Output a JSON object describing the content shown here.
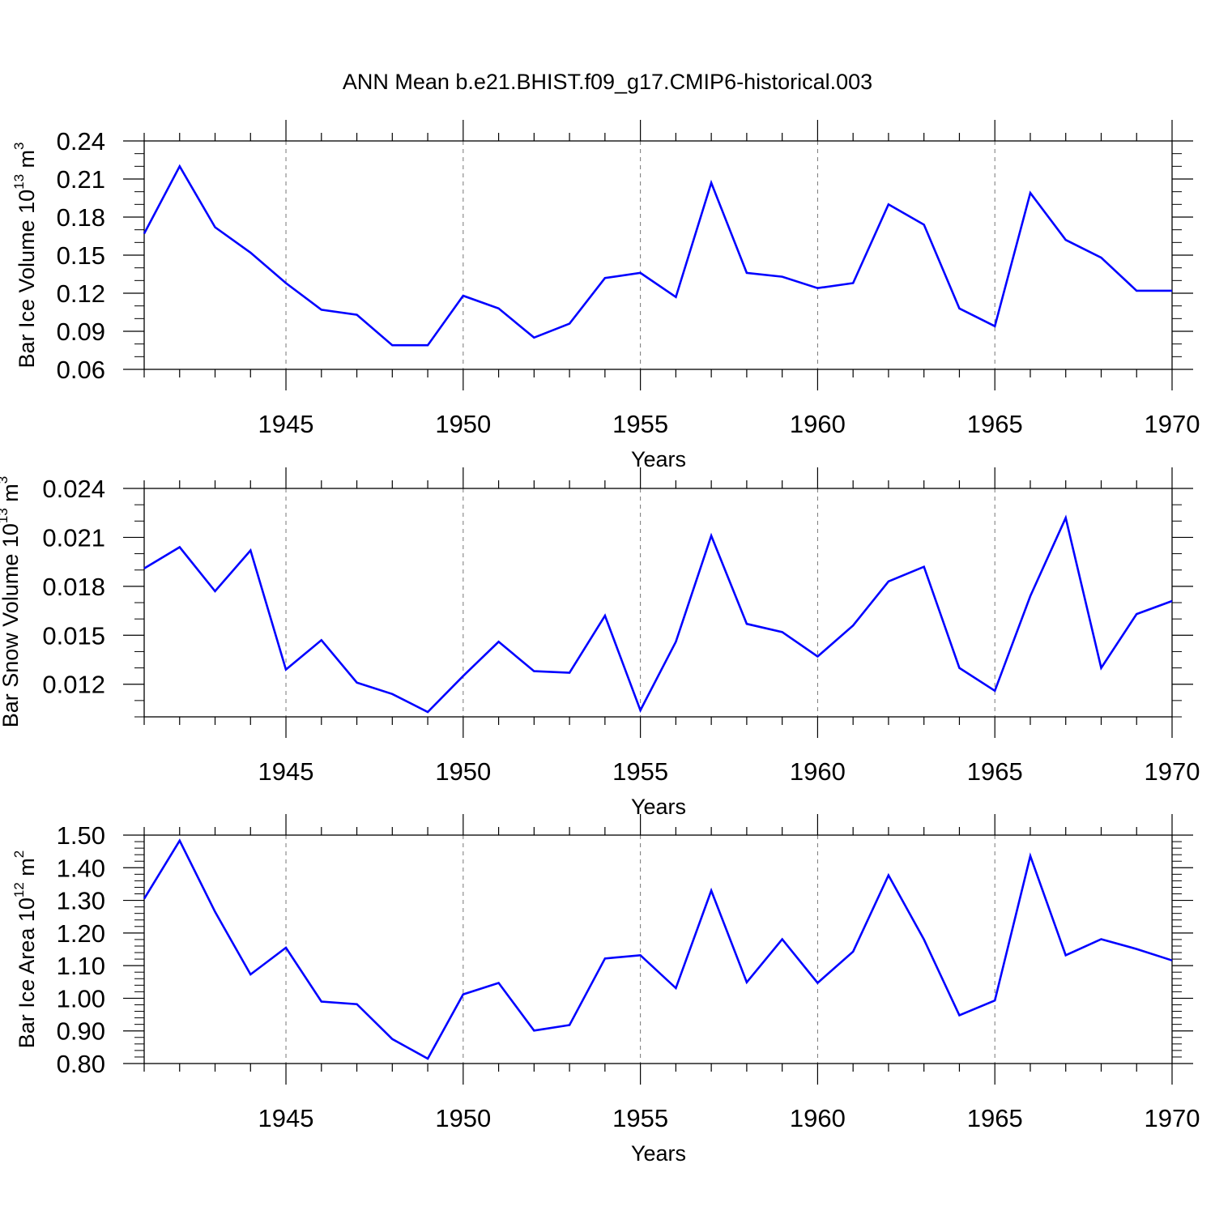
{
  "figure": {
    "title": "ANN Mean b.e21.BHIST.f09_g17.CMIP6-historical.003",
    "line_color": "#0000ff",
    "axis_color": "#000000",
    "grid_color": "#777777"
  },
  "chart_data": [
    {
      "type": "line",
      "ylabel": "Bar Ice Volume 10",
      "ylabel_exp": "13",
      "ylabel_unit": " m",
      "ylabel_unit_exp": "3",
      "xlabel": "Years",
      "xlim": [
        1941,
        1970
      ],
      "ylim": [
        0.06,
        0.24
      ],
      "yticks": [
        0.06,
        0.09,
        0.12,
        0.15,
        0.18,
        0.21,
        0.24
      ],
      "ytick_labels": [
        "0.06",
        "0.09",
        "0.12",
        "0.15",
        "0.18",
        "0.21",
        "0.24"
      ],
      "ytick_minor_step": 0.01,
      "xticks": [
        1945,
        1950,
        1955,
        1960,
        1965,
        1970
      ],
      "xtick_labels": [
        "1945",
        "1950",
        "1955",
        "1960",
        "1965",
        "1970"
      ],
      "x_gridlines": [
        1945,
        1950,
        1955,
        1960,
        1965
      ],
      "series": [
        {
          "name": "Bar Ice Volume",
          "x": [
            1941,
            1942,
            1943,
            1944,
            1945,
            1946,
            1947,
            1948,
            1949,
            1950,
            1951,
            1952,
            1953,
            1954,
            1955,
            1956,
            1957,
            1958,
            1959,
            1960,
            1961,
            1962,
            1963,
            1964,
            1965,
            1966,
            1967,
            1968,
            1969,
            1970
          ],
          "values": [
            0.167,
            0.22,
            0.172,
            0.152,
            0.128,
            0.107,
            0.103,
            0.079,
            0.079,
            0.118,
            0.108,
            0.085,
            0.096,
            0.132,
            0.136,
            0.117,
            0.207,
            0.136,
            0.133,
            0.124,
            0.128,
            0.19,
            0.174,
            0.108,
            0.094,
            0.199,
            0.162,
            0.148,
            0.122,
            0.122
          ]
        }
      ]
    },
    {
      "type": "line",
      "ylabel": "Bar Snow Volume 10",
      "ylabel_exp": "13",
      "ylabel_unit": " m",
      "ylabel_unit_exp": "3",
      "xlabel": "Years",
      "xlim": [
        1941,
        1970
      ],
      "ylim": [
        0.01,
        0.024
      ],
      "yticks": [
        0.012,
        0.015,
        0.018,
        0.021,
        0.024
      ],
      "ytick_labels": [
        "0.012",
        "0.015",
        "0.018",
        "0.021",
        "0.024"
      ],
      "ytick_minor_step": 0.001,
      "xticks": [
        1945,
        1950,
        1955,
        1960,
        1965,
        1970
      ],
      "xtick_labels": [
        "1945",
        "1950",
        "1955",
        "1960",
        "1965",
        "1970"
      ],
      "x_gridlines": [
        1945,
        1950,
        1955,
        1960,
        1965
      ],
      "series": [
        {
          "name": "Bar Snow Volume",
          "x": [
            1941,
            1942,
            1943,
            1944,
            1945,
            1946,
            1947,
            1948,
            1949,
            1950,
            1951,
            1952,
            1953,
            1954,
            1955,
            1956,
            1957,
            1958,
            1959,
            1960,
            1961,
            1962,
            1963,
            1964,
            1965,
            1966,
            1967,
            1968,
            1969,
            1970
          ],
          "values": [
            0.0191,
            0.0204,
            0.0177,
            0.0202,
            0.0129,
            0.0147,
            0.0121,
            0.0114,
            0.0103,
            0.0125,
            0.0146,
            0.0128,
            0.0127,
            0.0162,
            0.0104,
            0.0146,
            0.0211,
            0.0157,
            0.0152,
            0.0137,
            0.0156,
            0.0183,
            0.0192,
            0.013,
            0.0116,
            0.0174,
            0.0222,
            0.013,
            0.0163,
            0.0171
          ]
        }
      ]
    },
    {
      "type": "line",
      "ylabel": "Bar Ice Area 10",
      "ylabel_exp": "12",
      "ylabel_unit": " m",
      "ylabel_unit_exp": "2",
      "xlabel": "Years",
      "xlim": [
        1941,
        1970
      ],
      "ylim": [
        0.8,
        1.5
      ],
      "yticks": [
        0.8,
        0.9,
        1.0,
        1.1,
        1.2,
        1.3,
        1.4,
        1.5
      ],
      "ytick_labels": [
        "0.80",
        "0.90",
        "1.00",
        "1.10",
        "1.20",
        "1.30",
        "1.40",
        "1.50"
      ],
      "ytick_minor_step": 0.02,
      "xticks": [
        1945,
        1950,
        1955,
        1960,
        1965,
        1970
      ],
      "xtick_labels": [
        "1945",
        "1950",
        "1955",
        "1960",
        "1965",
        "1970"
      ],
      "x_gridlines": [
        1945,
        1950,
        1955,
        1960,
        1965
      ],
      "series": [
        {
          "name": "Bar Ice Area",
          "x": [
            1941,
            1942,
            1943,
            1944,
            1945,
            1946,
            1947,
            1948,
            1949,
            1950,
            1951,
            1952,
            1953,
            1954,
            1955,
            1956,
            1957,
            1958,
            1959,
            1960,
            1961,
            1962,
            1963,
            1964,
            1965,
            1966,
            1967,
            1968,
            1969,
            1970
          ],
          "values": [
            1.305,
            1.483,
            1.265,
            1.073,
            1.155,
            0.99,
            0.982,
            0.875,
            0.815,
            1.012,
            1.047,
            0.901,
            0.918,
            1.122,
            1.132,
            1.031,
            1.33,
            1.049,
            1.181,
            1.047,
            1.143,
            1.377,
            1.18,
            0.948,
            0.993,
            1.436,
            1.132,
            1.181,
            1.151,
            1.116
          ]
        }
      ]
    }
  ]
}
